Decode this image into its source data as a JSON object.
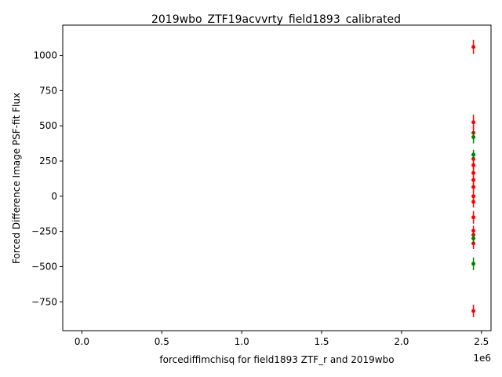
{
  "chart_data": {
    "type": "scatter",
    "title": "2019wbo_ZTF19acvvrty_field1893_calibrated",
    "xlabel": "forcediffimchisq for field1893 ZTF_r and 2019wbo",
    "ylabel": "Forced Difference Image PSF-fit Flux",
    "x_offset_label": "1e6",
    "xlim": [
      -0.12,
      2.56
    ],
    "ylim": [
      -955,
      1215
    ],
    "x_ticks": [
      0.0,
      0.5,
      1.0,
      1.5,
      2.0,
      2.5
    ],
    "x_tick_labels": [
      "0.0",
      "0.5",
      "1.0",
      "1.5",
      "2.0",
      "2.5"
    ],
    "y_ticks": [
      -750,
      -500,
      -250,
      0,
      250,
      500,
      750,
      1000
    ],
    "y_tick_labels": [
      "−750",
      "−500",
      "−250",
      "0",
      "250",
      "500",
      "750",
      "1000"
    ],
    "grid": false,
    "legend": "none",
    "series": [
      {
        "color": "#ff0000",
        "x": [
          2.45,
          2.45,
          2.45,
          2.45,
          2.45,
          2.45,
          2.45,
          2.45,
          2.45,
          2.45,
          2.45,
          2.45,
          2.45,
          2.45,
          2.45
        ],
        "y": [
          1060,
          525,
          450,
          265,
          220,
          165,
          115,
          65,
          0,
          -40,
          -150,
          -245,
          -275,
          -335,
          -815
        ],
        "err": [
          50,
          55,
          50,
          45,
          45,
          40,
          40,
          35,
          35,
          40,
          45,
          35,
          35,
          40,
          45
        ]
      },
      {
        "color": "#008000",
        "x": [
          2.45,
          2.45,
          2.45
        ],
        "y": [
          420,
          295,
          -300
        ],
        "err": [
          45,
          35,
          35
        ]
      },
      {
        "color": "#008000",
        "x": [
          2.45
        ],
        "y": [
          -480
        ],
        "err": [
          45
        ]
      }
    ]
  }
}
